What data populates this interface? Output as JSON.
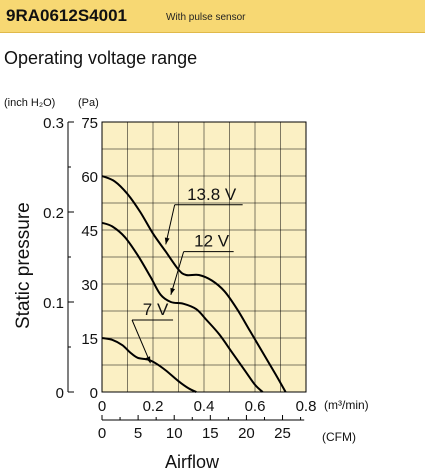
{
  "header": {
    "model": "9RA0612S4001",
    "subtitle": "With pulse sensor",
    "background": "#f7d873"
  },
  "title": "Operating voltage range",
  "chart_data": {
    "type": "line",
    "xlabel": "Airflow",
    "ylabel": "Static pressure",
    "x_unit_primary": "(m³/min)",
    "x_unit_secondary": "(CFM)",
    "y_unit_primary": "(Pa)",
    "y_unit_secondary": "(inch H₂O)",
    "xlim": [
      0,
      0.8
    ],
    "ylim": [
      0,
      75
    ],
    "grid": true,
    "plot_background": "#fbf0c4",
    "x_ticks": [
      "0",
      "0.2",
      "0.4",
      "0.6",
      "0.8"
    ],
    "x_tick_values": [
      0,
      0.2,
      0.4,
      0.6,
      0.8
    ],
    "y_ticks": [
      "0",
      "15",
      "30",
      "45",
      "60",
      "75"
    ],
    "y_tick_values": [
      0,
      15,
      30,
      45,
      60,
      75
    ],
    "y2_ticks": [
      "0",
      "0.1",
      "0.2",
      "0.3"
    ],
    "y2_tick_values": [
      0,
      0.1,
      0.2,
      0.3
    ],
    "cfm_ticks": [
      "0",
      "5",
      "10",
      "15",
      "20",
      "25"
    ],
    "cfm_tick_values": [
      0,
      5,
      10,
      15,
      20,
      25
    ],
    "series": [
      {
        "name": "13.8 V",
        "label_position": [
          0.43,
          52
        ],
        "arrow_to": [
          0.25,
          41
        ],
        "points": [
          [
            0,
            60
          ],
          [
            0.05,
            58.5
          ],
          [
            0.1,
            55
          ],
          [
            0.15,
            50
          ],
          [
            0.2,
            44
          ],
          [
            0.25,
            39
          ],
          [
            0.3,
            34
          ],
          [
            0.33,
            32.5
          ],
          [
            0.38,
            32.5
          ],
          [
            0.43,
            31
          ],
          [
            0.48,
            28
          ],
          [
            0.53,
            23
          ],
          [
            0.58,
            17
          ],
          [
            0.63,
            11
          ],
          [
            0.68,
            5
          ],
          [
            0.72,
            0
          ]
        ]
      },
      {
        "name": "12 V",
        "label_position": [
          0.43,
          39
        ],
        "arrow_to": [
          0.27,
          27
        ],
        "points": [
          [
            0,
            47
          ],
          [
            0.04,
            46
          ],
          [
            0.09,
            43
          ],
          [
            0.14,
            38
          ],
          [
            0.19,
            32
          ],
          [
            0.23,
            27
          ],
          [
            0.27,
            25
          ],
          [
            0.32,
            24.5
          ],
          [
            0.37,
            23
          ],
          [
            0.41,
            20
          ],
          [
            0.46,
            16
          ],
          [
            0.51,
            11
          ],
          [
            0.56,
            6
          ],
          [
            0.6,
            2
          ],
          [
            0.63,
            0
          ]
        ]
      },
      {
        "name": "7 V",
        "label_position": [
          0.21,
          20
        ],
        "arrow_to": [
          0.19,
          8
        ],
        "points": [
          [
            0,
            15
          ],
          [
            0.04,
            14.5
          ],
          [
            0.08,
            13
          ],
          [
            0.11,
            11
          ],
          [
            0.14,
            9.5
          ],
          [
            0.18,
            9
          ],
          [
            0.21,
            8
          ],
          [
            0.25,
            6
          ],
          [
            0.3,
            3
          ],
          [
            0.34,
            1
          ],
          [
            0.37,
            0
          ]
        ]
      }
    ]
  }
}
